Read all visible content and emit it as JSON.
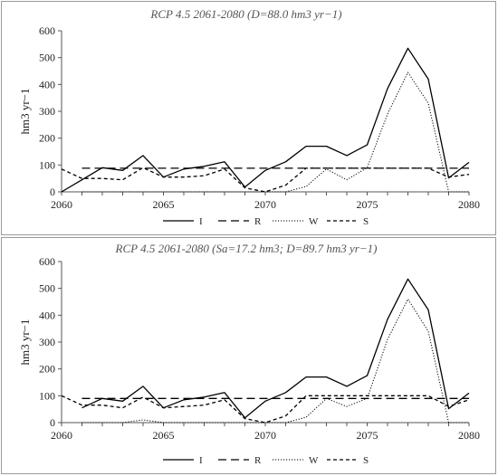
{
  "colors": {
    "axis": "#555555",
    "series": "#000000",
    "frame": "#9a9a9a"
  },
  "chart_data": [
    {
      "type": "line",
      "title": "RCP 4.5 2061-2080 (D=88.0 hm3 yr−1)",
      "xlabel": "",
      "ylabel": "hm3 yr−1",
      "xlim": [
        2060,
        2080
      ],
      "ylim": [
        0,
        600
      ],
      "x_ticks": [
        "2060",
        "2065",
        "2070",
        "2075",
        "2080"
      ],
      "y_ticks": [
        "0",
        "100",
        "200",
        "300",
        "400",
        "500",
        "600"
      ],
      "grid": false,
      "legend_position": "bottom",
      "series": [
        {
          "name": "I",
          "style": "solid",
          "x": [
            2060,
            2061,
            2062,
            2063,
            2064,
            2065,
            2066,
            2067,
            2068,
            2069,
            2070,
            2071,
            2072,
            2073,
            2074,
            2075,
            2076,
            2077,
            2078,
            2079,
            2080
          ],
          "y": [
            0,
            45,
            90,
            80,
            135,
            55,
            85,
            95,
            112,
            18,
            80,
            112,
            170,
            170,
            135,
            175,
            385,
            535,
            420,
            52,
            110
          ]
        },
        {
          "name": "R",
          "style": "long-dash",
          "x": [
            2061,
            2080
          ],
          "y": [
            88,
            88
          ]
        },
        {
          "name": "W",
          "style": "dotted",
          "x": [
            2061,
            2062,
            2063,
            2064,
            2065,
            2066,
            2067,
            2068,
            2069,
            2070,
            2071,
            2072,
            2073,
            2074,
            2075,
            2076,
            2077,
            2078,
            2079,
            2080
          ],
          "y": [
            0,
            0,
            0,
            0,
            0,
            0,
            0,
            0,
            0,
            0,
            0,
            20,
            85,
            45,
            90,
            290,
            445,
            330,
            0,
            0
          ]
        },
        {
          "name": "S",
          "style": "short-dash",
          "x": [
            2060,
            2061,
            2062,
            2063,
            2064,
            2065,
            2066,
            2067,
            2068,
            2069,
            2070,
            2071,
            2072,
            2073,
            2074,
            2075,
            2076,
            2077,
            2078,
            2079,
            2080
          ],
          "y": [
            85,
            50,
            50,
            45,
            90,
            55,
            55,
            60,
            85,
            15,
            0,
            25,
            88,
            88,
            88,
            88,
            88,
            88,
            88,
            55,
            65
          ]
        }
      ]
    },
    {
      "type": "line",
      "title": "RCP 4.5 2061-2080 (Sa=17.2 hm3; D=89.7 hm3 yr−1)",
      "xlabel": "",
      "ylabel": "hm3 yr−1",
      "xlim": [
        2060,
        2080
      ],
      "ylim": [
        0,
        600
      ],
      "x_ticks": [
        "2060",
        "2065",
        "2070",
        "2075",
        "2080"
      ],
      "y_ticks": [
        "0",
        "100",
        "200",
        "300",
        "400",
        "500",
        "600"
      ],
      "grid": false,
      "legend_position": "bottom",
      "series": [
        {
          "name": "I",
          "style": "solid",
          "x": [
            2061,
            2062,
            2063,
            2064,
            2065,
            2066,
            2067,
            2068,
            2069,
            2070,
            2071,
            2072,
            2073,
            2074,
            2075,
            2076,
            2077,
            2078,
            2079,
            2080
          ],
          "y": [
            55,
            90,
            80,
            135,
            55,
            85,
            95,
            112,
            18,
            80,
            112,
            170,
            170,
            135,
            175,
            385,
            535,
            420,
            52,
            110
          ]
        },
        {
          "name": "R",
          "style": "long-dash",
          "x": [
            2061,
            2080
          ],
          "y": [
            90,
            90
          ]
        },
        {
          "name": "W",
          "style": "dotted",
          "x": [
            2061,
            2062,
            2063,
            2064,
            2065,
            2066,
            2067,
            2068,
            2069,
            2070,
            2071,
            2072,
            2073,
            2074,
            2075,
            2076,
            2077,
            2078,
            2079,
            2080
          ],
          "y": [
            0,
            0,
            0,
            10,
            0,
            0,
            0,
            0,
            0,
            0,
            0,
            20,
            90,
            60,
            90,
            310,
            460,
            340,
            0,
            0
          ]
        },
        {
          "name": "S",
          "style": "short-dash",
          "x": [
            2060,
            2061,
            2062,
            2063,
            2064,
            2065,
            2066,
            2067,
            2068,
            2069,
            2070,
            2071,
            2072,
            2073,
            2074,
            2075,
            2076,
            2077,
            2078,
            2079,
            2080
          ],
          "y": [
            100,
            65,
            65,
            55,
            95,
            55,
            60,
            65,
            85,
            15,
            0,
            25,
            100,
            100,
            100,
            100,
            100,
            100,
            100,
            60,
            85
          ]
        }
      ]
    }
  ]
}
